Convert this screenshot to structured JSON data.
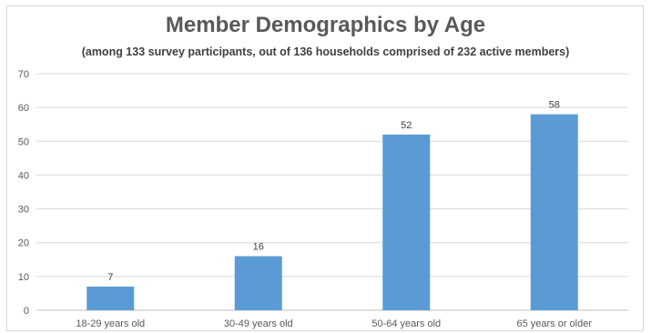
{
  "chart_data": {
    "type": "bar",
    "title": "Member Demographics by Age",
    "subtitle": "(among 133 survey participants, out of 136 households comprised of 232 active members)",
    "categories": [
      "18-29 years old",
      "30-49 years old",
      "50-64 years old",
      "65 years or older"
    ],
    "values": [
      7,
      16,
      52,
      58
    ],
    "ylim": [
      0,
      70
    ],
    "yticks": [
      0,
      10,
      20,
      30,
      40,
      50,
      60,
      70
    ],
    "grid": true,
    "bar_color": "#5b9bd5",
    "xlabel": "",
    "ylabel": ""
  }
}
